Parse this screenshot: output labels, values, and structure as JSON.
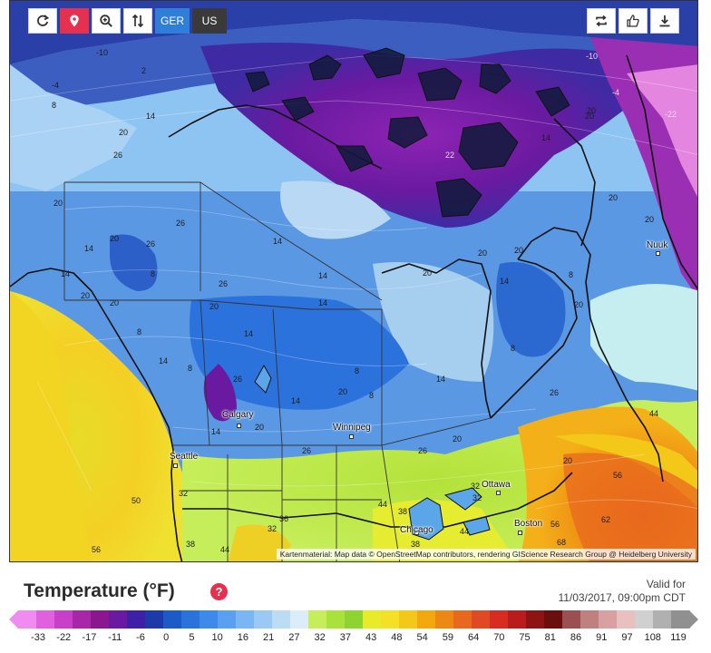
{
  "toolbar": {
    "left": [
      {
        "name": "refresh-button",
        "icon": "refresh-icon"
      },
      {
        "name": "location-button",
        "icon": "map-pin-icon"
      },
      {
        "name": "zoom-button",
        "icon": "zoom-in-icon"
      },
      {
        "name": "sort-button",
        "icon": "sort-arrows-icon"
      }
    ],
    "ger_label": "GER",
    "us_label": "US",
    "right": [
      {
        "name": "repeat-button",
        "icon": "repeat-icon"
      },
      {
        "name": "like-button",
        "icon": "thumbs-up-icon"
      },
      {
        "name": "download-button",
        "icon": "download-icon"
      }
    ]
  },
  "map": {
    "attribution": "Kartenmaterial: Map data © OpenStreetMap contributors, rendering GIScience Research Group @ Heidelberg University",
    "cities": [
      {
        "name": "Nuuk"
      },
      {
        "name": "Calgary"
      },
      {
        "name": "Winnipeg"
      },
      {
        "name": "Seattle"
      },
      {
        "name": "Ottawa"
      },
      {
        "name": "Chicago"
      },
      {
        "name": "Boston"
      }
    ],
    "contour_labels": [
      "-10",
      "2",
      "8",
      "14",
      "20",
      "26",
      "-4",
      "20",
      "14",
      "14",
      "22",
      "26",
      "20",
      "14",
      "20",
      "26",
      "20",
      "14",
      "26",
      "8",
      "14",
      "14",
      "20",
      "20",
      "20",
      "20",
      "8",
      "8",
      "14",
      "20",
      "8",
      "14",
      "20",
      "20",
      "14",
      "8",
      "14",
      "26",
      "20",
      "26",
      "44",
      "14",
      "8",
      "20",
      "26",
      "20",
      "8",
      "26",
      "20",
      "56",
      "32",
      "32",
      "50",
      "36",
      "38",
      "32",
      "44",
      "38",
      "32",
      "44",
      "56",
      "62",
      "68",
      "38",
      "56",
      "44",
      "-10",
      "-22",
      "-4",
      "20",
      "20",
      "14"
    ]
  },
  "legend": {
    "title": "Temperature (°F)",
    "valid_label": "Valid for",
    "valid_time": "11/03/2017, 09:00pm CDT",
    "ticks": [
      "-33",
      "-22",
      "-17",
      "-11",
      "-6",
      "0",
      "5",
      "10",
      "16",
      "21",
      "27",
      "32",
      "37",
      "43",
      "48",
      "54",
      "59",
      "64",
      "70",
      "75",
      "81",
      "86",
      "91",
      "97",
      "108",
      "119"
    ],
    "colors": [
      "#f08cf0",
      "#e060e0",
      "#c840c8",
      "#a826a8",
      "#8a1690",
      "#6a1aa0",
      "#3e1fa8",
      "#1c3aa8",
      "#1c5ac8",
      "#2b72dc",
      "#3d8aea",
      "#5aa0f0",
      "#7ab6f4",
      "#9acaf4",
      "#bcdcf4",
      "#dcecf8",
      "#c6ee5a",
      "#a8e23a",
      "#8ed430",
      "#e8ec28",
      "#f4e024",
      "#f4c818",
      "#f4a810",
      "#ee8814",
      "#e8681e",
      "#e04a22",
      "#d82c22",
      "#b81c1c",
      "#8e1414",
      "#6a0e0e",
      "#9a5050",
      "#c08080",
      "#d8a0a0",
      "#e8c0c0",
      "#d0d0d0",
      "#b0b0b0",
      "#909090"
    ]
  }
}
